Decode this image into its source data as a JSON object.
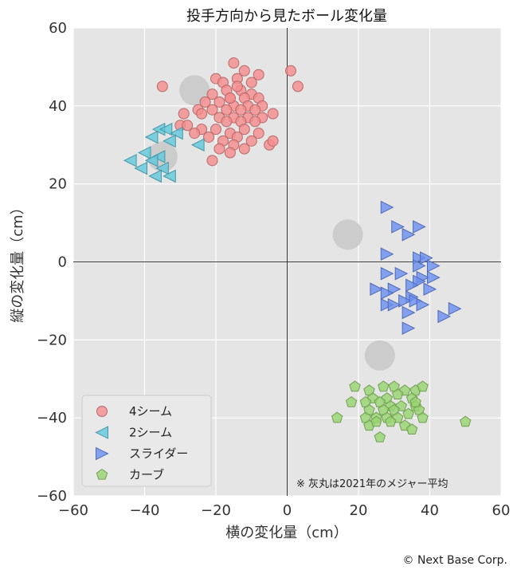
{
  "chart_data": {
    "type": "scatter",
    "title": "投手方向から見たボール変化量",
    "xlabel": "横の変化量（cm）",
    "ylabel": "縦の変化量（cm）",
    "xlim": [
      -60,
      60
    ],
    "ylim": [
      -60,
      60
    ],
    "xticks": [
      -60,
      -40,
      -20,
      0,
      20,
      40,
      60
    ],
    "yticks": [
      -60,
      -40,
      -20,
      0,
      20,
      40,
      60
    ],
    "xtick_labels": [
      "−60",
      "−40",
      "−20",
      "0",
      "20",
      "40",
      "60"
    ],
    "ytick_labels": [
      "−60",
      "−40",
      "−20",
      "0",
      "20",
      "40",
      "60"
    ],
    "grid": true,
    "legend_position": "lower-left",
    "annotation": "※ 灰丸は2021年のメジャー平均",
    "series": [
      {
        "name": "4シーム",
        "marker": "circle",
        "color": "#f58c8c",
        "points": [
          [
            -15,
            51
          ],
          [
            -12,
            49
          ],
          [
            -20,
            47
          ],
          [
            -18,
            46
          ],
          [
            -14,
            47
          ],
          [
            -10,
            46
          ],
          [
            -8,
            48
          ],
          [
            -35,
            45
          ],
          [
            -17,
            44
          ],
          [
            -13,
            44
          ],
          [
            -10,
            43
          ],
          [
            -21,
            43
          ],
          [
            -16,
            42
          ],
          [
            -12,
            42
          ],
          [
            -8,
            42
          ],
          [
            -23,
            41
          ],
          [
            -19,
            41
          ],
          [
            -15,
            40
          ],
          [
            -11,
            40
          ],
          [
            -7,
            40
          ],
          [
            -25,
            39
          ],
          [
            -21,
            39
          ],
          [
            -17,
            39
          ],
          [
            -13,
            39
          ],
          [
            -9,
            39
          ],
          [
            -29,
            38
          ],
          [
            -24,
            38
          ],
          [
            -19,
            37
          ],
          [
            -15,
            37
          ],
          [
            -11,
            37
          ],
          [
            -7,
            37
          ],
          [
            -4,
            38
          ],
          [
            -17,
            36
          ],
          [
            -13,
            36
          ],
          [
            -9,
            36
          ],
          [
            -30,
            35
          ],
          [
            -24,
            34
          ],
          [
            -20,
            34
          ],
          [
            -16,
            33
          ],
          [
            -12,
            34
          ],
          [
            -8,
            33
          ],
          [
            -22,
            32
          ],
          [
            -18,
            31
          ],
          [
            -14,
            32
          ],
          [
            -10,
            31
          ],
          [
            -5,
            30
          ],
          [
            -4,
            31
          ],
          [
            -15,
            30
          ],
          [
            -12,
            29
          ],
          [
            -19,
            29
          ],
          [
            -16,
            28
          ],
          [
            -21,
            26
          ],
          [
            1,
            49
          ],
          [
            3,
            45
          ],
          [
            -26,
            33
          ],
          [
            -28,
            35
          ],
          [
            -16,
            42
          ],
          [
            -14,
            45
          ]
        ]
      },
      {
        "name": "2シーム",
        "marker": "triangle-left",
        "color": "#5fc8dc",
        "points": [
          [
            -36,
            34
          ],
          [
            -34,
            34
          ],
          [
            -31,
            33
          ],
          [
            -38,
            32
          ],
          [
            -33,
            31
          ],
          [
            -40,
            28
          ],
          [
            -36,
            27
          ],
          [
            -38,
            26
          ],
          [
            -44,
            26
          ],
          [
            -35,
            24
          ],
          [
            -41,
            24
          ],
          [
            -25,
            30
          ],
          [
            -37,
            22
          ],
          [
            -33,
            22
          ]
        ]
      },
      {
        "name": "スライダー",
        "marker": "triangle-right",
        "color": "#6a8ff0",
        "points": [
          [
            28,
            14
          ],
          [
            37,
            9
          ],
          [
            31,
            9
          ],
          [
            34,
            7
          ],
          [
            28,
            2
          ],
          [
            37,
            1
          ],
          [
            39,
            1
          ],
          [
            37,
            -1
          ],
          [
            41,
            -1
          ],
          [
            28,
            -3
          ],
          [
            32,
            -3
          ],
          [
            38,
            -4
          ],
          [
            41,
            -4
          ],
          [
            37,
            -5
          ],
          [
            35,
            -6
          ],
          [
            30,
            -7
          ],
          [
            25,
            -7
          ],
          [
            28,
            -8
          ],
          [
            35,
            -9
          ],
          [
            40,
            -7
          ],
          [
            33,
            -10
          ],
          [
            36,
            -10
          ],
          [
            28,
            -11
          ],
          [
            30,
            -11
          ],
          [
            38,
            -11
          ],
          [
            34,
            -13
          ],
          [
            47,
            -12
          ],
          [
            44,
            -14
          ],
          [
            34,
            -17
          ]
        ]
      },
      {
        "name": "カーブ",
        "marker": "pentagon",
        "color": "#97d46f",
        "points": [
          [
            19,
            -32
          ],
          [
            23,
            -33
          ],
          [
            27,
            -32
          ],
          [
            30,
            -32
          ],
          [
            33,
            -33
          ],
          [
            36,
            -33
          ],
          [
            38,
            -32
          ],
          [
            24,
            -35
          ],
          [
            28,
            -35
          ],
          [
            31,
            -34
          ],
          [
            35,
            -35
          ],
          [
            18,
            -36
          ],
          [
            22,
            -36
          ],
          [
            26,
            -36
          ],
          [
            29,
            -37
          ],
          [
            32,
            -37
          ],
          [
            36,
            -37
          ],
          [
            37,
            -38
          ],
          [
            23,
            -38
          ],
          [
            27,
            -38
          ],
          [
            30,
            -38
          ],
          [
            34,
            -39
          ],
          [
            22,
            -40
          ],
          [
            25,
            -40
          ],
          [
            28,
            -40
          ],
          [
            31,
            -40
          ],
          [
            14,
            -40
          ],
          [
            23,
            -42
          ],
          [
            25,
            -41
          ],
          [
            29,
            -41
          ],
          [
            33,
            -42
          ],
          [
            35,
            -43
          ],
          [
            26,
            -45
          ],
          [
            50,
            -41
          ],
          [
            36,
            -36
          ],
          [
            38,
            -40
          ]
        ]
      },
      {
        "name": "2021年のメジャー平均",
        "marker": "big-circle",
        "color": "#c8c8c8",
        "points": [
          [
            -26,
            44
          ],
          [
            -35,
            27
          ],
          [
            17,
            7
          ],
          [
            26,
            -24
          ]
        ]
      }
    ]
  },
  "credit": "© Next Base Corp."
}
